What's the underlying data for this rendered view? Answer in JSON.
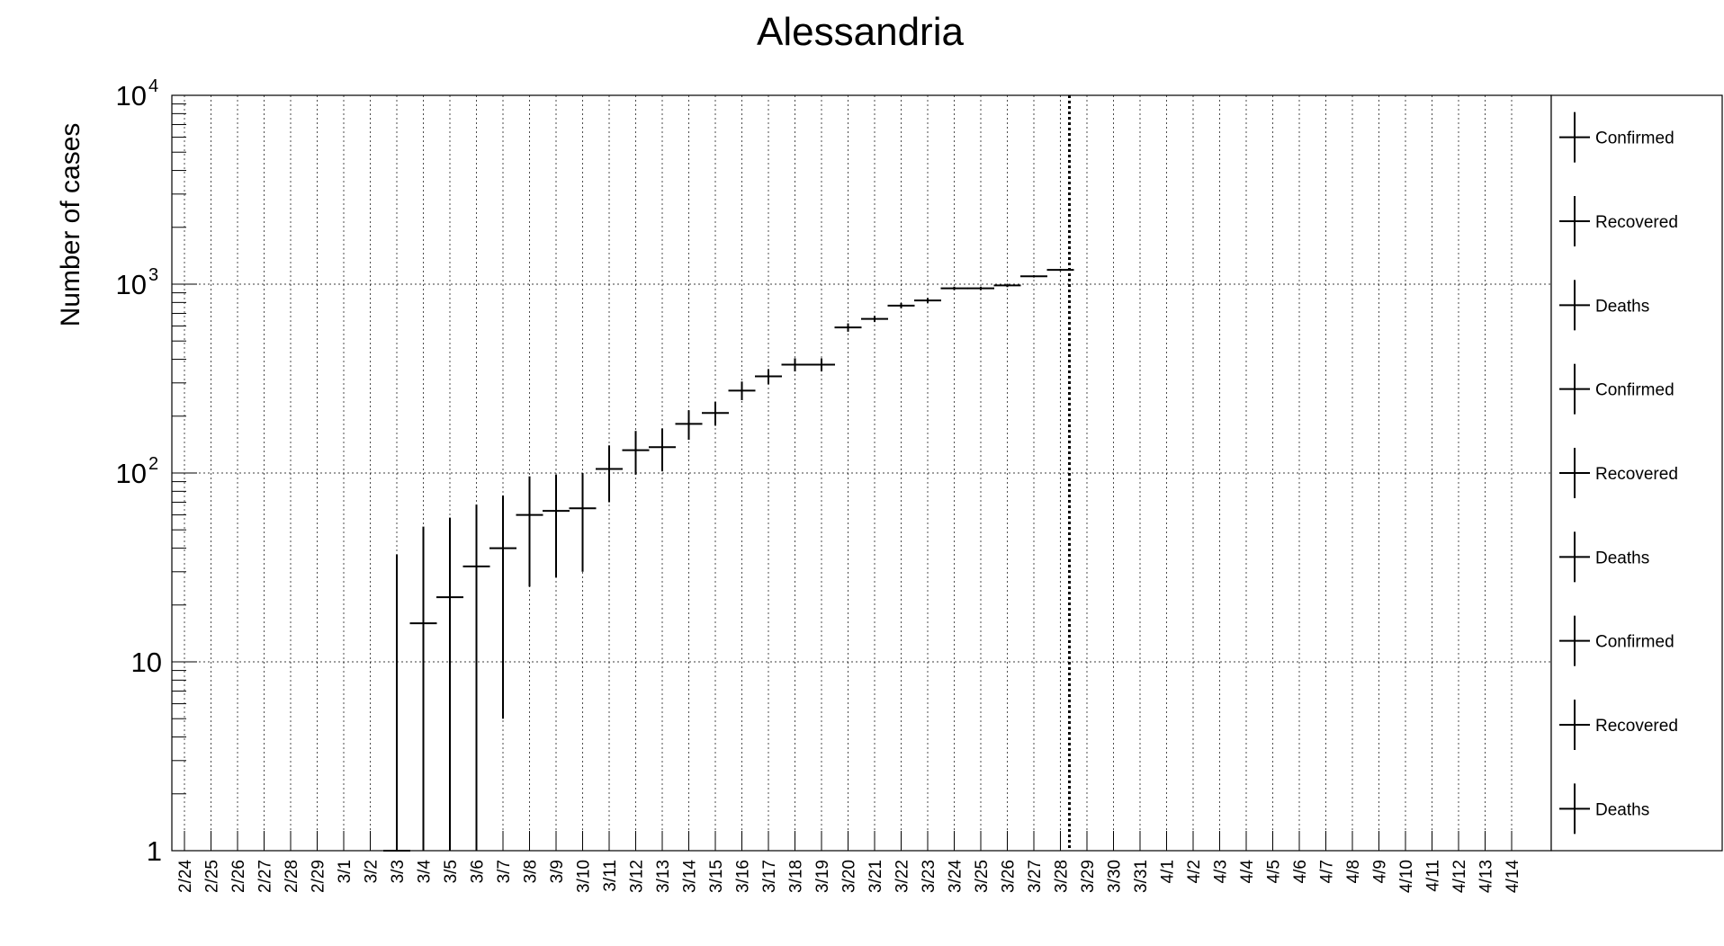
{
  "chart_data": {
    "type": "scatter",
    "title": "Alessandria",
    "xlabel": "",
    "ylabel": "Number of cases",
    "y_scale": "log",
    "ylim": [
      1,
      10000
    ],
    "y_major_ticks": [
      1,
      10,
      100,
      1000,
      10000
    ],
    "y_tick_labels": [
      "1",
      "10",
      "10",
      "10",
      "10"
    ],
    "y_tick_exponents": [
      "",
      "",
      "2",
      "3",
      "4"
    ],
    "grid": true,
    "categories": [
      "2/24",
      "2/25",
      "2/26",
      "2/27",
      "2/28",
      "2/29",
      "3/1",
      "3/2",
      "3/3",
      "3/4",
      "3/5",
      "3/6",
      "3/7",
      "3/8",
      "3/9",
      "3/10",
      "3/11",
      "3/12",
      "3/13",
      "3/14",
      "3/15",
      "3/16",
      "3/17",
      "3/18",
      "3/19",
      "3/20",
      "3/21",
      "3/22",
      "3/23",
      "3/24",
      "3/25",
      "3/26",
      "3/27",
      "3/28",
      "3/29",
      "3/30",
      "3/31",
      "4/1",
      "4/2",
      "4/3",
      "4/4",
      "4/5",
      "4/6",
      "4/7",
      "4/8",
      "4/9",
      "4/10",
      "4/11",
      "4/12",
      "4/13",
      "4/14"
    ],
    "marker_line_date": "3/28",
    "legend_position": "right",
    "legend": [
      "Confirmed",
      "Recovered",
      "Deaths",
      "Confirmed",
      "Recovered",
      "Deaths",
      "Confirmed",
      "Recovered",
      "Deaths"
    ],
    "series": [
      {
        "name": "Confirmed",
        "points": [
          {
            "x": "3/3",
            "y": 1,
            "ylo": 1,
            "yhi": 37
          },
          {
            "x": "3/4",
            "y": 16,
            "ylo": 1,
            "yhi": 52
          },
          {
            "x": "3/5",
            "y": 22,
            "ylo": 1,
            "yhi": 58
          },
          {
            "x": "3/6",
            "y": 32,
            "ylo": 1,
            "yhi": 68
          },
          {
            "x": "3/7",
            "y": 40,
            "ylo": 5,
            "yhi": 76
          },
          {
            "x": "3/8",
            "y": 60,
            "ylo": 25,
            "yhi": 96
          },
          {
            "x": "3/9",
            "y": 63,
            "ylo": 28,
            "yhi": 98
          },
          {
            "x": "3/10",
            "y": 65,
            "ylo": 30,
            "yhi": 100
          },
          {
            "x": "3/11",
            "y": 105,
            "ylo": 70,
            "yhi": 140
          },
          {
            "x": "3/12",
            "y": 132,
            "ylo": 98,
            "yhi": 167
          },
          {
            "x": "3/13",
            "y": 137,
            "ylo": 102,
            "yhi": 172
          },
          {
            "x": "3/14",
            "y": 182,
            "ylo": 150,
            "yhi": 215
          },
          {
            "x": "3/15",
            "y": 208,
            "ylo": 178,
            "yhi": 238
          },
          {
            "x": "3/16",
            "y": 273,
            "ylo": 243,
            "yhi": 305
          },
          {
            "x": "3/17",
            "y": 325,
            "ylo": 295,
            "yhi": 355
          },
          {
            "x": "3/18",
            "y": 375,
            "ylo": 345,
            "yhi": 405
          },
          {
            "x": "3/19",
            "y": 375,
            "ylo": 345,
            "yhi": 405
          },
          {
            "x": "3/20",
            "y": 590,
            "ylo": 560,
            "yhi": 620
          },
          {
            "x": "3/21",
            "y": 655,
            "ylo": 630,
            "yhi": 680
          },
          {
            "x": "3/22",
            "y": 770,
            "ylo": 745,
            "yhi": 795
          },
          {
            "x": "3/23",
            "y": 820,
            "ylo": 795,
            "yhi": 845
          },
          {
            "x": "3/24",
            "y": 950,
            "ylo": 930,
            "yhi": 970
          },
          {
            "x": "3/25",
            "y": 950,
            "ylo": 930,
            "yhi": 970
          },
          {
            "x": "3/26",
            "y": 985,
            "ylo": 965,
            "yhi": 1005
          },
          {
            "x": "3/27",
            "y": 1100,
            "ylo": 1085,
            "yhi": 1115
          },
          {
            "x": "3/28",
            "y": 1190,
            "ylo": 1175,
            "yhi": 1205
          }
        ]
      }
    ]
  }
}
